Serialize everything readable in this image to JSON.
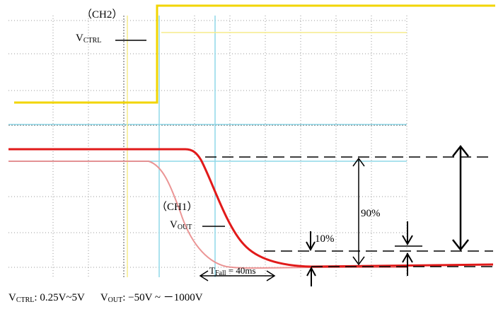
{
  "labels": {
    "ch2": "（CH2）",
    "vctrl_main": "V",
    "vctrl_sub": "CTRL",
    "ch1": "（CH1）",
    "vout_main": "V",
    "vout_sub": "OUT",
    "pct90": "90%",
    "pct10": "10%",
    "tfall_main": "T",
    "tfall_sub": "Fall",
    "tfall_value": " = 40ms"
  },
  "footer": {
    "vctrl_main": "V",
    "vctrl_sub": "CTRL",
    "vctrl_range": ": 0.25V~5V",
    "vout_main": "V",
    "vout_sub": "OUT",
    "vout_range": ": −50V ~ －1000V"
  },
  "colors": {
    "ch2_trace": "#f2d500",
    "ch1_trace": "#e11a1a",
    "ch1_ref": "#e98a8a",
    "cursor": "#8fd8e8",
    "grid": "#9a9a9a"
  }
}
